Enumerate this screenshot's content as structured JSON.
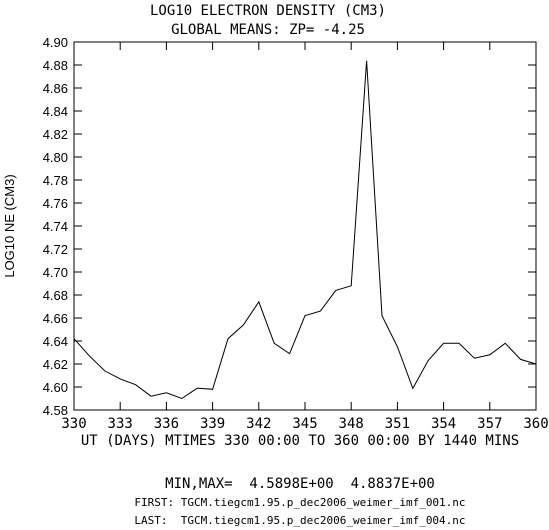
{
  "chart_data": {
    "type": "line",
    "title": "LOG10 ELECTRON DENSITY (CM3)",
    "subtitle": "GLOBAL MEANS: ZP= -4.25",
    "xlabel": "UT (DAYS) MTIMES 330 00:00 TO 360 00:00 BY 1440 MINS",
    "ylabel": "LOG10 NE (CM3)",
    "xlim": [
      330,
      360
    ],
    "ylim": [
      4.58,
      4.9
    ],
    "x_ticks": [
      "330",
      "333",
      "336",
      "339",
      "342",
      "345",
      "348",
      "351",
      "354",
      "357",
      "360"
    ],
    "y_ticks": [
      "4.58",
      "4.60",
      "4.62",
      "4.64",
      "4.66",
      "4.68",
      "4.70",
      "4.72",
      "4.74",
      "4.76",
      "4.78",
      "4.80",
      "4.82",
      "4.84",
      "4.86",
      "4.88",
      "4.90"
    ],
    "grid": false,
    "series": [
      {
        "x": [
          330,
          331,
          332,
          333,
          334,
          335,
          336,
          337,
          338,
          339,
          340,
          341,
          342,
          343,
          344,
          345,
          346,
          347,
          348,
          349,
          350,
          351,
          352,
          353,
          354,
          355,
          356,
          357,
          358,
          359,
          360
        ],
        "y": [
          4.642,
          4.627,
          4.614,
          4.607,
          4.602,
          4.592,
          4.595,
          4.59,
          4.599,
          4.598,
          4.642,
          4.654,
          4.674,
          4.638,
          4.629,
          4.662,
          4.666,
          4.684,
          4.688,
          4.8837,
          4.662,
          4.635,
          4.5988,
          4.623,
          4.638,
          4.638,
          4.625,
          4.628,
          4.638,
          4.624,
          4.62
        ]
      }
    ],
    "minmax_text": "MIN,MAX=  4.5898E+00  4.8837E+00",
    "first_file": "FIRST: TGCM.tiegcm1.95.p_dec2006_weimer_imf_001.nc",
    "last_file": "LAST:  TGCM.tiegcm1.95.p_dec2006_weimer_imf_004.nc"
  }
}
